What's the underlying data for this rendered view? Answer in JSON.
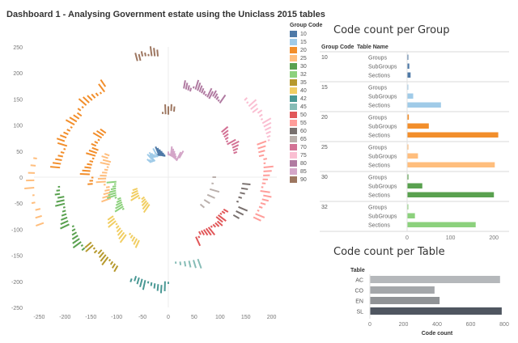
{
  "dashboard": {
    "title": "Dashboard 1 - Analysing Government estate using the Uniclass 2015 tables"
  },
  "legend": {
    "title": "Group Code",
    "items": [
      {
        "code": "10",
        "color": "#4e79a7"
      },
      {
        "code": "15",
        "color": "#a0cbe8"
      },
      {
        "code": "20",
        "color": "#f28e2b"
      },
      {
        "code": "25",
        "color": "#ffbe7d"
      },
      {
        "code": "30",
        "color": "#59a14f"
      },
      {
        "code": "32",
        "color": "#8cd17d"
      },
      {
        "code": "35",
        "color": "#b6992d"
      },
      {
        "code": "40",
        "color": "#f1ce63"
      },
      {
        "code": "42",
        "color": "#499894"
      },
      {
        "code": "45",
        "color": "#86bcb6"
      },
      {
        "code": "50",
        "color": "#e15759"
      },
      {
        "code": "55",
        "color": "#ff9d9a"
      },
      {
        "code": "60",
        "color": "#79706e"
      },
      {
        "code": "65",
        "color": "#bab0ac"
      },
      {
        "code": "70",
        "color": "#d37295"
      },
      {
        "code": "75",
        "color": "#fabfd2"
      },
      {
        "code": "80",
        "color": "#b07aa1"
      },
      {
        "code": "85",
        "color": "#d4a6c8"
      },
      {
        "code": "90",
        "color": "#9d7660"
      }
    ]
  },
  "chart_data": [
    {
      "type": "scatter",
      "title": "",
      "xlabel": "",
      "ylabel": "",
      "xlim": [
        -260,
        210
      ],
      "ylim": [
        -250,
        250
      ],
      "x_ticks": [
        -250,
        -200,
        -150,
        -100,
        -50,
        0,
        50,
        100,
        150,
        200
      ],
      "y_ticks": [
        250,
        200,
        150,
        100,
        50,
        0,
        -50,
        -100,
        -150,
        -200,
        -250
      ],
      "grid": false,
      "legend_position": "right",
      "clusters": [
        {
          "group": "10",
          "radius": 40,
          "angle_start": 100,
          "angle_end": 118,
          "count": 8
        },
        {
          "group": "15",
          "radius": 40,
          "angle_start": 118,
          "angle_end": 140,
          "count": 10
        },
        {
          "group": "20",
          "radius": 205,
          "angle_start": 125,
          "angle_end": 175,
          "count": 26
        },
        {
          "group": "20",
          "radius": 145,
          "angle_start": 145,
          "angle_end": 185,
          "count": 18
        },
        {
          "group": "25",
          "radius": 115,
          "angle_start": 160,
          "angle_end": 200,
          "count": 16
        },
        {
          "group": "25",
          "radius": 255,
          "angle_start": 172,
          "angle_end": 200,
          "count": 10
        },
        {
          "group": "30",
          "radius": 205,
          "angle_start": 185,
          "angle_end": 220,
          "count": 20
        },
        {
          "group": "32",
          "radius": 100,
          "angle_start": 185,
          "angle_end": 215,
          "count": 14
        },
        {
          "group": "35",
          "radius": 190,
          "angle_start": 220,
          "angle_end": 240,
          "count": 12
        },
        {
          "group": "40",
          "radius": 130,
          "angle_start": 215,
          "angle_end": 245,
          "count": 14
        },
        {
          "group": "40",
          "radius": 60,
          "angle_start": 200,
          "angle_end": 235,
          "count": 10
        },
        {
          "group": "42",
          "radius": 200,
          "angle_start": 250,
          "angle_end": 270,
          "count": 12
        },
        {
          "group": "45",
          "radius": 160,
          "angle_start": 275,
          "angle_end": 290,
          "count": 6
        },
        {
          "group": "50",
          "radius": 120,
          "angle_start": 295,
          "angle_end": 330,
          "count": 16
        },
        {
          "group": "55",
          "radius": 180,
          "angle_start": 335,
          "angle_end": 20,
          "count": 20
        },
        {
          "group": "60",
          "radius": 140,
          "angle_start": 330,
          "angle_end": 355,
          "count": 8
        },
        {
          "group": "65",
          "radius": 80,
          "angle_start": 320,
          "angle_end": 360,
          "count": 6
        },
        {
          "group": "70",
          "radius": 130,
          "angle_start": 20,
          "angle_end": 40,
          "count": 10
        },
        {
          "group": "75",
          "radius": 205,
          "angle_start": 20,
          "angle_end": 45,
          "count": 14
        },
        {
          "group": "80",
          "radius": 170,
          "angle_start": 55,
          "angle_end": 80,
          "count": 18
        },
        {
          "group": "85",
          "radius": 35,
          "angle_start": 60,
          "angle_end": 90,
          "count": 10
        },
        {
          "group": "90",
          "radius": 230,
          "angle_start": 95,
          "angle_end": 105,
          "count": 8
        },
        {
          "group": "90",
          "radius": 120,
          "angle_start": 85,
          "angle_end": 95,
          "count": 5
        }
      ]
    },
    {
      "type": "bar",
      "title": "Code count per Group",
      "orientation": "horizontal",
      "column_headers": [
        "Group Code",
        "Table Name"
      ],
      "xlabel": "Code Count",
      "xlim": [
        0,
        235
      ],
      "x_ticks": [
        0,
        100,
        200
      ],
      "groups": [
        {
          "code": "10",
          "color": "#4e79a7",
          "rows": [
            {
              "name": "Groups",
              "value": 1
            },
            {
              "name": "SubGroups",
              "value": 5
            },
            {
              "name": "Sections",
              "value": 8
            }
          ]
        },
        {
          "code": "15",
          "color": "#a0cbe8",
          "rows": [
            {
              "name": "Groups",
              "value": 1
            },
            {
              "name": "SubGroups",
              "value": 14
            },
            {
              "name": "Sections",
              "value": 78
            }
          ]
        },
        {
          "code": "20",
          "color": "#f28e2b",
          "rows": [
            {
              "name": "Groups",
              "value": 4
            },
            {
              "name": "SubGroups",
              "value": 50
            },
            {
              "name": "Sections",
              "value": 210
            }
          ]
        },
        {
          "code": "25",
          "color": "#ffbe7d",
          "rows": [
            {
              "name": "Groups",
              "value": 3
            },
            {
              "name": "SubGroups",
              "value": 25
            },
            {
              "name": "Sections",
              "value": 202
            }
          ]
        },
        {
          "code": "30",
          "color": "#59a14f",
          "rows": [
            {
              "name": "Groups",
              "value": 3
            },
            {
              "name": "SubGroups",
              "value": 35
            },
            {
              "name": "Sections",
              "value": 200
            }
          ]
        },
        {
          "code": "32",
          "color": "#8cd17d",
          "rows": [
            {
              "name": "Groups",
              "value": 1
            },
            {
              "name": "SubGroups",
              "value": 18
            },
            {
              "name": "Sections",
              "value": 158
            }
          ]
        }
      ]
    },
    {
      "type": "bar",
      "title": "Code count per Table",
      "orientation": "horizontal",
      "column_header": "Table",
      "xlabel": "Code count",
      "xlim": [
        0,
        800
      ],
      "x_ticks": [
        0,
        200,
        400,
        600,
        800
      ],
      "categories": [
        "AC",
        "CO",
        "EN",
        "SL"
      ],
      "values": [
        775,
        385,
        415,
        785
      ],
      "colors": [
        "#b5b8bb",
        "#a4a7aa",
        "#909396",
        "#4f5660"
      ]
    }
  ]
}
